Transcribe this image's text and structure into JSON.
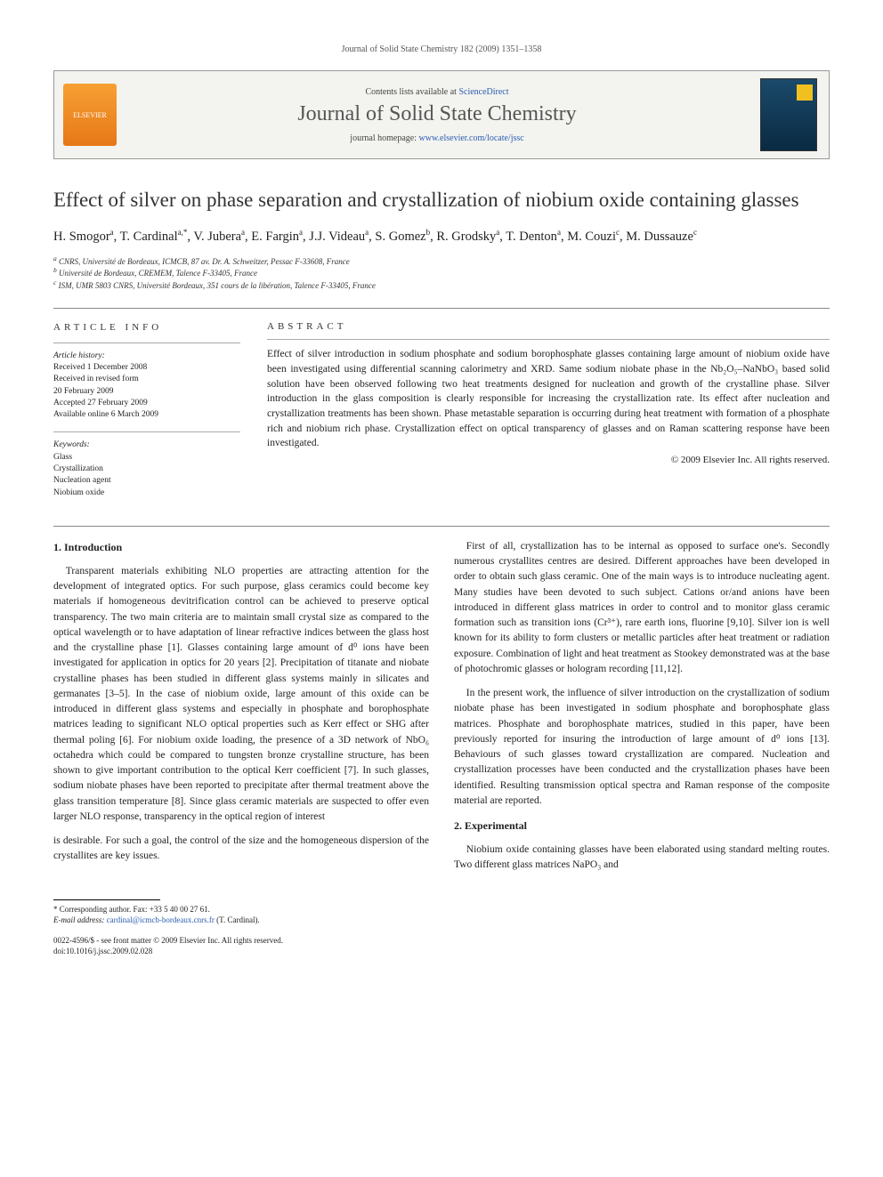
{
  "header": {
    "citation": "Journal of Solid State Chemistry 182 (2009) 1351–1358"
  },
  "banner": {
    "contents_prefix": "Contents lists available at ",
    "contents_link": "ScienceDirect",
    "journal": "Journal of Solid State Chemistry",
    "homepage_prefix": "journal homepage: ",
    "homepage_link": "www.elsevier.com/locate/jssc",
    "publisher": "ELSEVIER"
  },
  "title": "Effect of silver on phase separation and crystallization of niobium oxide containing glasses",
  "authors_html": "H. Smogor<sup>a</sup>, T. Cardinal<sup>a,*</sup>, V. Jubera<sup>a</sup>, E. Fargin<sup>a</sup>, J.J. Videau<sup>a</sup>, S. Gomez<sup>b</sup>, R. Grodsky<sup>a</sup>, T. Denton<sup>a</sup>, M. Couzi<sup>c</sup>, M. Dussauze<sup>c</sup>",
  "affiliations": [
    "a CNRS, Université de Bordeaux, ICMCB, 87 av. Dr. A. Schweitzer, Pessac F-33608, France",
    "b Université de Bordeaux, CREMEM, Talence F-33405, France",
    "c ISM, UMR 5803 CNRS, Université Bordeaux, 351 cours de la libération, Talence F-33405, France"
  ],
  "article_info": {
    "header": "ARTICLE INFO",
    "history_label": "Article history:",
    "history": [
      "Received 1 December 2008",
      "Received in revised form",
      "20 February 2009",
      "Accepted 27 February 2009",
      "Available online 6 March 2009"
    ],
    "keywords_label": "Keywords:",
    "keywords": [
      "Glass",
      "Crystallization",
      "Nucleation agent",
      "Niobium oxide"
    ]
  },
  "abstract": {
    "header": "ABSTRACT",
    "text": "Effect of silver introduction in sodium phosphate and sodium borophosphate glasses containing large amount of niobium oxide have been investigated using differential scanning calorimetry and XRD. Same sodium niobate phase in the Nb₂O₅–NaNbO₃ based solid solution have been observed following two heat treatments designed for nucleation and growth of the crystalline phase. Silver introduction in the glass composition is clearly responsible for increasing the crystallization rate. Its effect after nucleation and crystallization treatments has been shown. Phase metastable separation is occurring during heat treatment with formation of a phosphate rich and niobium rich phase. Crystallization effect on optical transparency of glasses and on Raman scattering response have been investigated.",
    "copyright": "© 2009 Elsevier Inc. All rights reserved."
  },
  "sections": {
    "intro_heading": "1.  Introduction",
    "intro_p1": "Transparent materials exhibiting NLO properties are attracting attention for the development of integrated optics. For such purpose, glass ceramics could become key materials if homogeneous devitrification control can be achieved to preserve optical transparency. The two main criteria are to maintain small crystal size as compared to the optical wavelength or to have adaptation of linear refractive indices between the glass host and the crystalline phase [1]. Glasses containing large amount of d⁰ ions have been investigated for application in optics for 20 years [2]. Precipitation of titanate and niobate crystalline phases has been studied in different glass systems mainly in silicates and germanates [3–5]. In the case of niobium oxide, large amount of this oxide can be introduced in different glass systems and especially in phosphate and borophosphate matrices leading to significant NLO optical properties such as Kerr effect or SHG after thermal poling [6]. For niobium oxide loading, the presence of a 3D network of NbO₆ octahedra which could be compared to tungsten bronze crystalline structure, has been shown to give important contribution to the optical Kerr coefficient [7]. In such glasses, sodium niobate phases have been reported to precipitate after thermal treatment above the glass transition temperature [8]. Since glass ceramic materials are suspected to offer even larger NLO response, transparency in the optical region of interest",
    "intro_p2": "is desirable. For such a goal, the control of the size and the homogeneous dispersion of the crystallites are key issues.",
    "intro_p3": "First of all, crystallization has to be internal as opposed to surface one's. Secondly numerous crystallites centres are desired. Different approaches have been developed in order to obtain such glass ceramic. One of the main ways is to introduce nucleating agent. Many studies have been devoted to such subject. Cations or/and anions have been introduced in different glass matrices in order to control and to monitor glass ceramic formation such as transition ions (Cr³⁺), rare earth ions, fluorine [9,10]. Silver ion is well known for its ability to form clusters or metallic particles after heat treatment or radiation exposure. Combination of light and heat treatment as Stookey demonstrated was at the base of photochromic glasses or hologram recording [11,12].",
    "intro_p4": "In the present work, the influence of silver introduction on the crystallization of sodium niobate phase has been investigated in sodium phosphate and borophosphate glass matrices. Phosphate and borophosphate matrices, studied in this paper, have been previously reported for insuring the introduction of large amount of d⁰ ions [13]. Behaviours of such glasses toward crystallization are compared. Nucleation and crystallization processes have been conducted and the crystallization phases have been identified. Resulting transmission optical spectra and Raman response of the composite material are reported.",
    "exp_heading": "2.  Experimental",
    "exp_p1": "Niobium oxide containing glasses have been elaborated using standard melting routes. Two different glass matrices NaPO₃ and"
  },
  "footer": {
    "corresponding": "* Corresponding author. Fax: +33 5 40 00 27 61.",
    "email_label": "E-mail address:",
    "email": "cardinal@icmcb-bordeaux.cnrs.fr",
    "email_who": "(T. Cardinal).",
    "issn": "0022-4596/$ - see front matter © 2009 Elsevier Inc. All rights reserved.",
    "doi": "doi:10.1016/j.jssc.2009.02.028"
  }
}
